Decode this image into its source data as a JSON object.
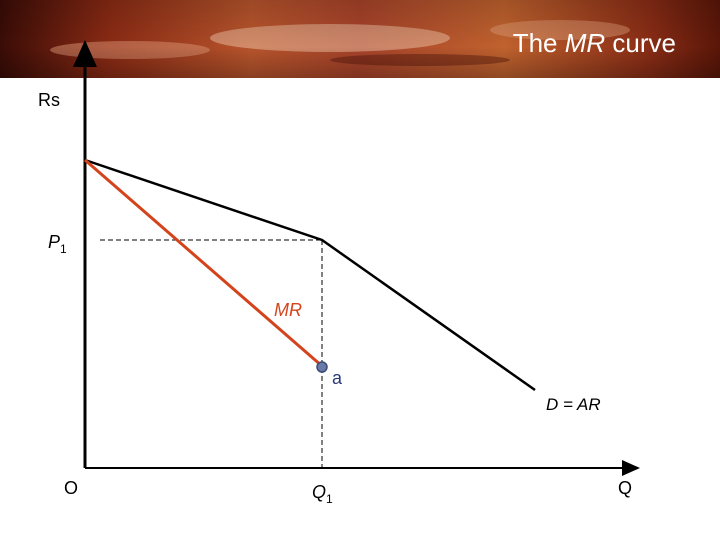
{
  "header": {
    "title": {
      "parts": [
        "The ",
        "MR",
        " curve"
      ]
    }
  },
  "diagram": {
    "y_axis_label": "Rs",
    "x_axis_label": "Q",
    "origin_label": "O",
    "price_label": {
      "symbol": "P",
      "subscript": "1"
    },
    "quantity_label": {
      "symbol": "Q",
      "subscript": "1"
    },
    "mr_label": "MR",
    "point_label": "a",
    "demand_label": "D = AR"
  }
}
